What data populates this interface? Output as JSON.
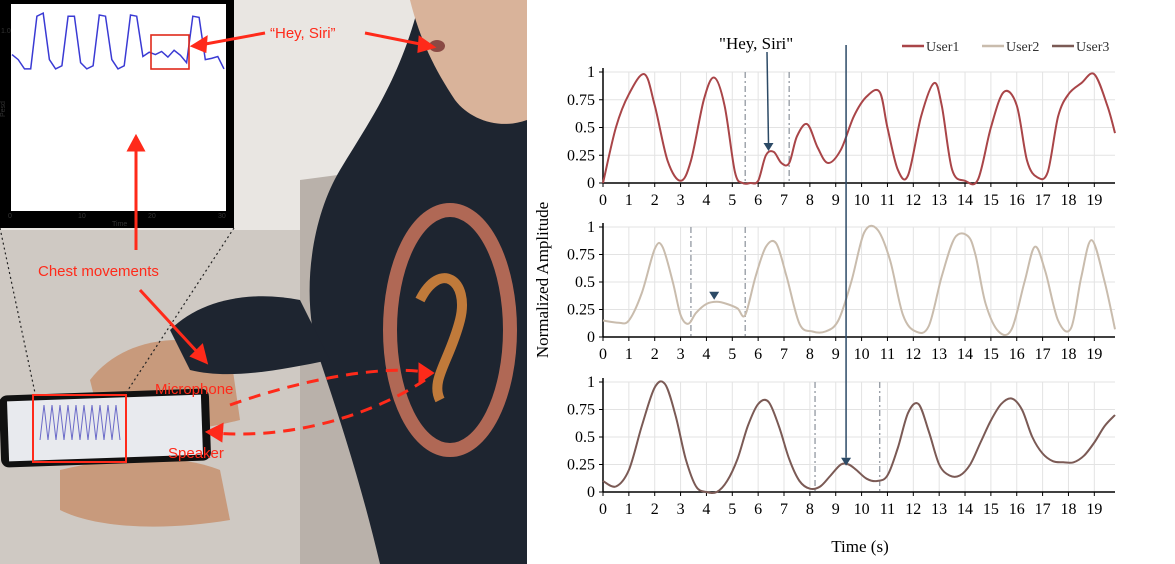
{
  "photo": {
    "labels": {
      "hey_siri": "“Hey, Siri”",
      "chest_movements": "Chest movements",
      "microphone": "Microphone",
      "speaker": "Speaker"
    },
    "inset": {
      "xlabel": "Time",
      "ylabel": "Pesd",
      "xticks": [
        "0",
        "10",
        "20",
        "30"
      ],
      "yticks": [
        "1.0"
      ],
      "values": [
        0.28,
        0.2,
        0.05,
        0.05,
        0.9,
        0.95,
        0.2,
        0.05,
        0.1,
        0.9,
        0.9,
        0.15,
        0.05,
        0.1,
        0.92,
        0.9,
        0.2,
        0.05,
        0.1,
        0.92,
        0.9,
        0.25,
        0.32,
        0.28,
        0.33,
        0.24,
        0.35,
        0.27,
        0.15,
        0.9,
        0.88,
        0.2,
        0.22,
        0.25,
        0.05
      ],
      "line_color": "#3a3ad4",
      "highlight_color": "#e02a1a"
    },
    "colors": {
      "annotation": "#ff2a1a",
      "skin": "#c89a7c",
      "hoodie": "#1e2530",
      "background": "#c8c0b8"
    }
  },
  "chart_data": {
    "type": "line",
    "annotation": "\"Hey, Siri\"",
    "ylabel": "Normalized Amplitude",
    "xlabel": "Time (s)",
    "xticks": [
      "0",
      "1",
      "2",
      "3",
      "4",
      "5",
      "6",
      "7",
      "8",
      "9",
      "10",
      "11",
      "12",
      "13",
      "14",
      "15",
      "16",
      "17",
      "18",
      "19"
    ],
    "yticks": [
      "0",
      "0.25",
      "0.5",
      "0.75",
      "1"
    ],
    "xlim": [
      0,
      19.8
    ],
    "ylim": [
      0,
      1
    ],
    "grid": true,
    "legend_position": "top-right",
    "series": [
      {
        "name": "User1",
        "color": "#a94548",
        "x": [
          0,
          0.5,
          1.0,
          1.6,
          2.0,
          2.5,
          3.0,
          3.4,
          3.9,
          4.3,
          4.7,
          5.1,
          5.4,
          5.7,
          6.0,
          6.3,
          6.6,
          6.9,
          7.2,
          7.5,
          7.9,
          8.3,
          8.7,
          9.2,
          9.7,
          10.2,
          10.7,
          11.0,
          11.4,
          11.8,
          12.3,
          12.8,
          13.1,
          13.5,
          14.0,
          14.5,
          15.0,
          15.5,
          16.0,
          16.4,
          16.8,
          17.2,
          17.6,
          18.0,
          18.5,
          19.0,
          19.5,
          19.8
        ],
        "y": [
          0.0,
          0.5,
          0.8,
          0.98,
          0.7,
          0.2,
          0.02,
          0.2,
          0.75,
          0.95,
          0.7,
          0.1,
          0.0,
          0.0,
          0.02,
          0.25,
          0.28,
          0.18,
          0.18,
          0.42,
          0.53,
          0.32,
          0.18,
          0.3,
          0.6,
          0.78,
          0.82,
          0.5,
          0.12,
          0.07,
          0.6,
          0.9,
          0.7,
          0.12,
          0.02,
          0.03,
          0.5,
          0.82,
          0.7,
          0.2,
          0.05,
          0.1,
          0.6,
          0.8,
          0.9,
          0.98,
          0.7,
          0.45
        ]
      },
      {
        "name": "User2",
        "color": "#c9bcad",
        "x": [
          0,
          0.6,
          1.0,
          1.5,
          2.0,
          2.3,
          2.7,
          3.0,
          3.3,
          3.6,
          4.0,
          4.4,
          4.8,
          5.2,
          5.5,
          5.9,
          6.3,
          6.7,
          7.1,
          7.6,
          8.1,
          8.6,
          9.1,
          9.6,
          10.1,
          10.6,
          11.1,
          11.6,
          12.1,
          12.6,
          13.1,
          13.6,
          14.1,
          14.4,
          14.8,
          15.3,
          15.8,
          16.3,
          16.7,
          17.1,
          17.6,
          18.1,
          18.5,
          18.9,
          19.4,
          19.8
        ],
        "y": [
          0.15,
          0.13,
          0.15,
          0.4,
          0.8,
          0.82,
          0.5,
          0.2,
          0.12,
          0.22,
          0.3,
          0.32,
          0.3,
          0.26,
          0.2,
          0.55,
          0.82,
          0.85,
          0.55,
          0.12,
          0.05,
          0.05,
          0.15,
          0.5,
          0.95,
          0.98,
          0.7,
          0.2,
          0.05,
          0.1,
          0.55,
          0.9,
          0.92,
          0.75,
          0.3,
          0.05,
          0.07,
          0.5,
          0.82,
          0.6,
          0.15,
          0.08,
          0.55,
          0.88,
          0.5,
          0.07
        ]
      },
      {
        "name": "User3",
        "color": "#7b5a55",
        "x": [
          0,
          0.5,
          1.0,
          1.5,
          2.0,
          2.4,
          2.8,
          3.2,
          3.6,
          4.0,
          4.4,
          4.8,
          5.2,
          5.6,
          6.0,
          6.4,
          6.8,
          7.2,
          7.6,
          8.0,
          8.4,
          8.8,
          9.2,
          9.5,
          9.8,
          10.2,
          10.6,
          11.0,
          11.4,
          11.8,
          12.2,
          12.6,
          13.0,
          13.4,
          13.8,
          14.2,
          14.6,
          15.0,
          15.4,
          15.8,
          16.2,
          16.6,
          17.0,
          17.4,
          17.8,
          18.2,
          18.6,
          19.0,
          19.4,
          19.8
        ],
        "y": [
          0.1,
          0.05,
          0.2,
          0.6,
          0.95,
          0.98,
          0.7,
          0.3,
          0.05,
          0.0,
          0.0,
          0.1,
          0.3,
          0.6,
          0.8,
          0.82,
          0.6,
          0.3,
          0.1,
          0.03,
          0.05,
          0.15,
          0.25,
          0.25,
          0.2,
          0.12,
          0.1,
          0.15,
          0.4,
          0.72,
          0.8,
          0.55,
          0.25,
          0.15,
          0.15,
          0.25,
          0.45,
          0.65,
          0.8,
          0.85,
          0.75,
          0.5,
          0.35,
          0.28,
          0.27,
          0.27,
          0.33,
          0.45,
          0.6,
          0.7
        ]
      }
    ],
    "markers": [
      {
        "series": "User1",
        "boundaries": [
          5.5,
          7.2
        ],
        "marker_x": 6.4,
        "marker_y": 0.27
      },
      {
        "series": "User2",
        "boundaries": [
          3.4,
          5.5
        ],
        "marker_x": 4.3,
        "marker_y": 0.32
      },
      {
        "series": "User3",
        "boundaries": [
          8.2,
          10.7
        ],
        "marker_x": 9.4,
        "marker_y": 0.22
      }
    ],
    "arrow_color": "#2c4a66",
    "boundary_color": "#9aa0a8"
  }
}
